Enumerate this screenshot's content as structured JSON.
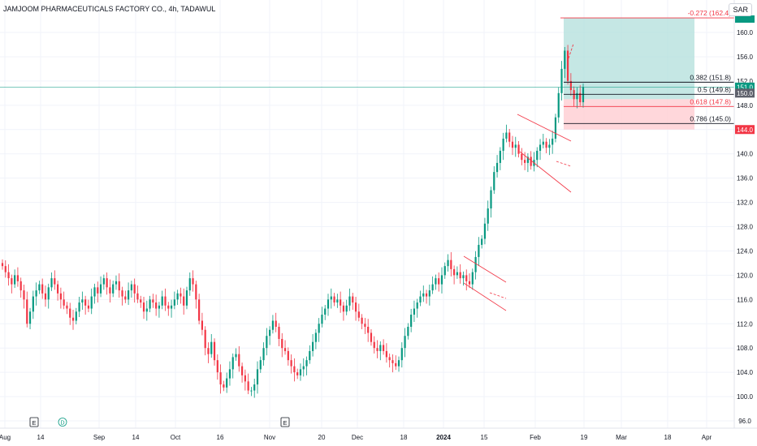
{
  "header": {
    "symbol_title": "JAMJOOM PHARMACEUTICALS FACTORY CO., 4h, TADAWUL",
    "currency": "SAR"
  },
  "colors": {
    "up": "#089981",
    "down": "#f23645",
    "grid": "#f0f3fa",
    "axis_text": "#131722",
    "channel": "#f23645",
    "target_zone": "#b2dfdb",
    "stop_zone": "#ffcdd2",
    "price_line": "#089981",
    "fib_0272": "#f23645",
    "fib_0382": "#131722",
    "fib_05": "#131722",
    "fib_0618": "#f23645",
    "fib_0786": "#131722"
  },
  "chart_data": {
    "type": "candlestick",
    "timeframe": "4h",
    "ylim": [
      95,
      163
    ],
    "y_ticks": [
      "96.0",
      "100.0",
      "104.0",
      "108.0",
      "112.0",
      "116.0",
      "120.0",
      "124.0",
      "128.0",
      "132.0",
      "136.0",
      "140.0",
      "144.0",
      "148.0",
      "152.0",
      "156.0",
      "160.0"
    ],
    "x_ticks": [
      "Aug",
      "14",
      "Sep",
      "14",
      "Oct",
      "16",
      "Nov",
      "20",
      "Dec",
      "18",
      "2024",
      "15",
      "Feb",
      "19",
      "Mar",
      "18",
      "Apr"
    ],
    "price_labels": [
      {
        "label": "151.0",
        "value": 151.0,
        "color": "#089981"
      },
      {
        "label": "150.0",
        "value": 150.0,
        "color": "#5d606b"
      },
      {
        "label": "144.0",
        "value": 144.0,
        "color": "#f23645"
      }
    ],
    "fib_levels": [
      {
        "label": "-0.272 (162.4)",
        "value": 162.4
      },
      {
        "label": "0.382 (151.8)",
        "value": 151.8
      },
      {
        "label": "0.5 (149.8)",
        "value": 149.8
      },
      {
        "label": "0.618 (147.8)",
        "value": 147.8
      },
      {
        "label": "0.786 (145.0)",
        "value": 145.0
      }
    ],
    "position": {
      "entry": 149.0,
      "target": 162.4,
      "stop": 144.0
    },
    "event_markers": [
      {
        "label": "E",
        "at": "Aug 14"
      },
      {
        "label": "D",
        "at": "Sep"
      },
      {
        "label": "E",
        "at": "Nov 20"
      }
    ],
    "closes": [
      121.5,
      120.5,
      119.5,
      118.5,
      120.0,
      119.0,
      117.5,
      116.0,
      112.0,
      114.0,
      116.5,
      117.5,
      118.5,
      117.0,
      116.0,
      118.0,
      119.5,
      118.5,
      117.0,
      116.0,
      115.0,
      114.5,
      113.0,
      112.5,
      114.0,
      115.5,
      116.0,
      115.0,
      114.5,
      116.5,
      118.0,
      117.0,
      118.5,
      119.5,
      118.0,
      117.0,
      118.5,
      119.0,
      117.5,
      116.5,
      116.0,
      117.5,
      118.5,
      117.0,
      116.0,
      115.5,
      114.0,
      114.5,
      116.0,
      115.5,
      114.5,
      115.0,
      116.5,
      115.0,
      114.5,
      115.0,
      116.0,
      117.0,
      116.5,
      115.0,
      117.5,
      119.5,
      118.5,
      116.0,
      112.5,
      111.0,
      108.0,
      107.0,
      109.0,
      106.0,
      104.0,
      102.0,
      101.5,
      103.0,
      104.5,
      106.5,
      107.0,
      105.0,
      103.5,
      102.5,
      101.0,
      101.0,
      102.0,
      104.5,
      106.0,
      108.0,
      110.0,
      111.0,
      112.5,
      111.5,
      109.5,
      108.0,
      107.5,
      106.0,
      105.0,
      104.0,
      103.5,
      104.5,
      105.0,
      106.0,
      107.5,
      109.0,
      110.5,
      112.0,
      113.5,
      114.5,
      116.0,
      116.5,
      115.5,
      116.0,
      115.0,
      114.0,
      115.0,
      116.5,
      115.5,
      114.0,
      113.0,
      112.0,
      111.5,
      110.5,
      109.0,
      108.0,
      107.5,
      108.5,
      107.5,
      106.5,
      106.0,
      105.5,
      105.0,
      106.0,
      108.0,
      110.0,
      111.5,
      113.5,
      114.5,
      115.5,
      116.5,
      117.0,
      116.5,
      117.5,
      118.5,
      119.5,
      118.5,
      120.0,
      121.5,
      122.5,
      121.0,
      120.0,
      120.5,
      119.5,
      120.0,
      119.0,
      118.5,
      120.5,
      123.0,
      125.0,
      126.0,
      128.5,
      131.0,
      134.0,
      137.0,
      138.5,
      140.5,
      142.5,
      143.5,
      142.0,
      141.0,
      141.5,
      140.0,
      139.0,
      138.5,
      139.5,
      138.0,
      139.0,
      140.5,
      141.5,
      142.0,
      141.0,
      141.5,
      142.5,
      146.0,
      150.0,
      154.0,
      157.0,
      152.0,
      150.5,
      149.0,
      150.0,
      148.5,
      151.0
    ]
  },
  "axis": {
    "y_ticks": [
      "96.0",
      "100.0",
      "104.0",
      "108.0",
      "112.0",
      "116.0",
      "120.0",
      "124.0",
      "128.0",
      "132.0",
      "136.0",
      "140.0",
      "144.0",
      "148.0",
      "152.0",
      "156.0",
      "160.0"
    ],
    "x_ticks": [
      "Aug",
      "14",
      "Sep",
      "14",
      "Oct",
      "16",
      "Nov",
      "20",
      "Dec",
      "18",
      "2024",
      "15",
      "Feb",
      "19",
      "Mar",
      "18",
      "Apr"
    ]
  },
  "annotations": {
    "fib_0272": "-0.272 (162.4)",
    "fib_0382": "0.382 (151.8)",
    "fib_05": "0.5 (149.8)",
    "fib_0618": "0.618 (147.8)",
    "fib_0786": "0.786 (145.0)",
    "price_151": "151.0",
    "price_150": "150.0",
    "price_144": "144.0",
    "marker_e1": "E",
    "marker_d": "D",
    "marker_e2": "E"
  }
}
